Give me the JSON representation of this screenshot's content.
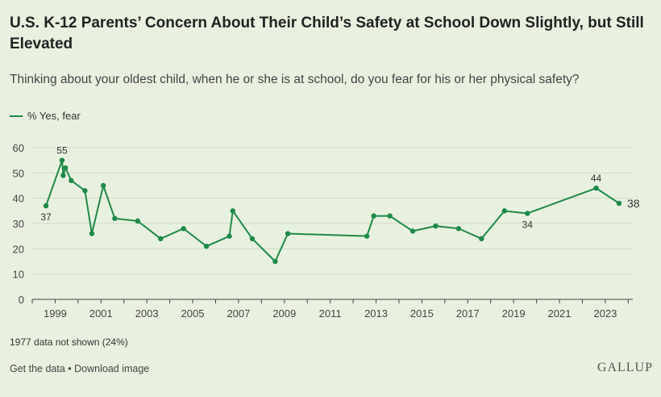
{
  "title": "U.S. K-12 Parents’ Concern About Their Child’s Safety at School Down Slightly, but Still Elevated",
  "subtitle": "Thinking about your oldest child, when he or she is at school, do you fear for his or her physical safety?",
  "legend_label": "% Yes, fear",
  "note": "1977 data not shown (24%)",
  "footer": {
    "get_data": "Get the data",
    "separator": " • ",
    "download": "Download image"
  },
  "brand": "GALLUP",
  "colors": {
    "line": "#1e8a47",
    "background": "#e8f1e0",
    "grid": "#cfdcc6"
  },
  "chart_data": {
    "type": "line",
    "title": "U.S. K-12 Parents’ Concern About Their Child’s Safety at School Down Slightly, but Still Elevated",
    "xlabel": "",
    "ylabel": "",
    "ylim": [
      0,
      60
    ],
    "xlim": [
      1998,
      2024.2
    ],
    "yticks": [
      0,
      10,
      20,
      30,
      40,
      50,
      60
    ],
    "xticks": [
      1999,
      2001,
      2003,
      2005,
      2007,
      2009,
      2011,
      2013,
      2015,
      2017,
      2019,
      2021,
      2023
    ],
    "grid": "horizontal",
    "legend": "top-left",
    "series": [
      {
        "name": "% Yes, fear",
        "x": [
          1998.6,
          1999.3,
          1999.35,
          1999.45,
          1999.7,
          2000.3,
          2000.6,
          2001.1,
          2001.6,
          2002.6,
          2003.6,
          2004.6,
          2005.6,
          2006.6,
          2006.75,
          2007.6,
          2008.6,
          2009.15,
          2012.6,
          2012.9,
          2013.6,
          2014.6,
          2015.6,
          2016.6,
          2017.6,
          2018.6,
          2019.6,
          2022.6,
          2023.6
        ],
        "values": [
          37,
          55,
          49,
          52,
          47,
          43,
          26,
          45,
          32,
          31,
          24,
          28,
          21,
          25,
          35,
          24,
          15,
          26,
          25,
          33,
          33,
          27,
          29,
          28,
          24,
          35,
          34,
          44,
          38
        ],
        "labels": [
          {
            "text": "37",
            "index": 0,
            "pos": "below"
          },
          {
            "text": "55",
            "index": 1,
            "pos": "above"
          },
          {
            "text": "34",
            "index": 26,
            "pos": "below"
          },
          {
            "text": "44",
            "index": 27,
            "pos": "above"
          },
          {
            "text": "38",
            "index": 28,
            "pos": "right"
          }
        ]
      }
    ]
  }
}
